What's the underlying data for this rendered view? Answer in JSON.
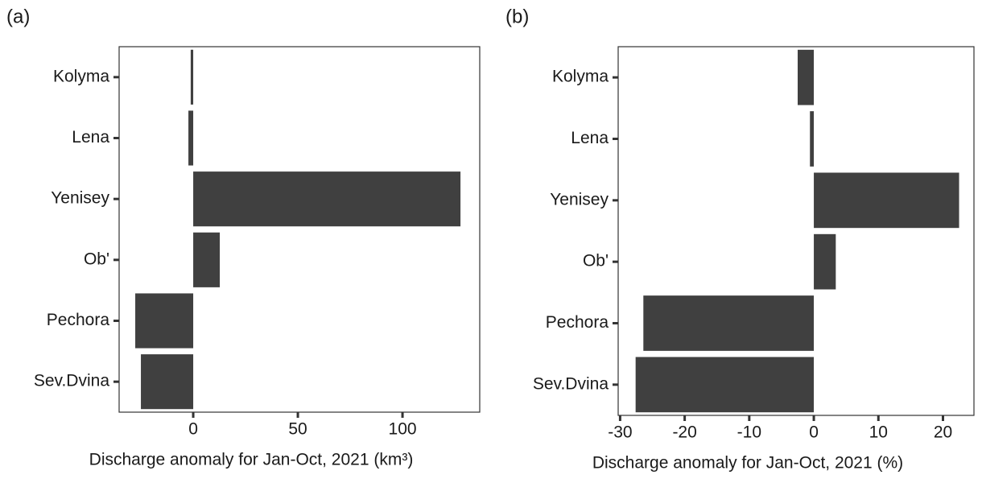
{
  "chart_data": [
    {
      "type": "barh",
      "title": "(a)",
      "categories": [
        "Kolyma",
        "Lena",
        "Yenisey",
        "Ob'",
        "Pechora",
        "Sev.Dvina"
      ],
      "values": [
        -1.2,
        -2.3,
        127.7,
        12.7,
        -27.7,
        -25
      ],
      "color": "#404040",
      "xlabel": "Discharge anomaly for Jan-Oct, 2021 (km³)",
      "xlim": [
        -35.4,
        136.9
      ],
      "xticks": [
        0,
        50,
        100
      ]
    },
    {
      "type": "barh",
      "title": "(b)",
      "categories": [
        "Kolyma",
        "Lena",
        "Yenisey",
        "Ob'",
        "Pechora",
        "Sev.Dvina"
      ],
      "values": [
        -2.5,
        -0.6,
        22.5,
        3.4,
        -26.4,
        -27.6
      ],
      "color": "#404040",
      "xlabel": "Discharge anomaly for Jan-Oct, 2021 (%)",
      "xlim": [
        -30.3,
        24.8
      ],
      "xticks": [
        -30,
        -20,
        -10,
        0,
        10,
        20
      ]
    }
  ]
}
